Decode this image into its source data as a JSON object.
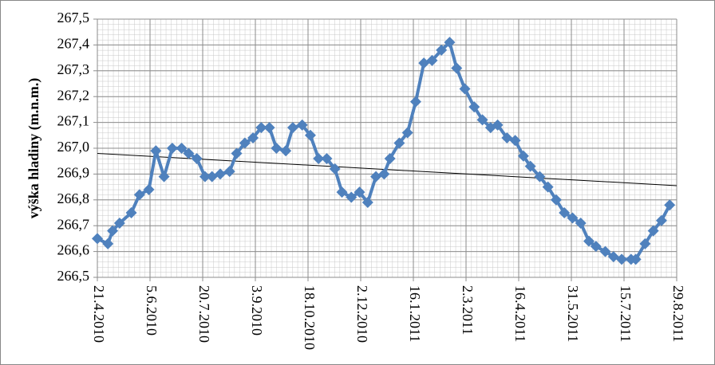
{
  "chart_data": {
    "type": "line",
    "y_label": "výška hladiny (m.n.m.)",
    "x": [
      "21.4.2010",
      "30.4.2010",
      "4.5.2010",
      "10.5.2010",
      "20.5.2010",
      "27.5.2010",
      "4.6.2010",
      "10.6.2010",
      "17.6.2010",
      "24.6.2010",
      "2.7.2010",
      "8.7.2010",
      "15.7.2010",
      "22.7.2010",
      "28.7.2010",
      "4.8.2010",
      "12.8.2010",
      "18.8.2010",
      "25.8.2010",
      "1.9.2010",
      "8.9.2010",
      "15.9.2010",
      "21.9.2010",
      "29.9.2010",
      "5.10.2010",
      "13.10.2010",
      "20.10.2010",
      "27.10.2010",
      "3.11.2010",
      "10.11.2010",
      "16.11.2010",
      "24.11.2010",
      "1.12.2010",
      "8.12.2010",
      "15.12.2010",
      "22.12.2010",
      "27.12.2010",
      "4.1.2011",
      "11.1.2011",
      "18.1.2011",
      "25.1.2011",
      "1.2.2011",
      "9.2.2011",
      "16.2.2011",
      "22.2.2011",
      "1.3.2011",
      "9.3.2011",
      "16.3.2011",
      "23.3.2011",
      "29.3.2011",
      "6.4.2011",
      "13.4.2011",
      "20.4.2011",
      "26.4.2011",
      "4.5.2011",
      "11.5.2011",
      "18.5.2011",
      "25.5.2011",
      "1.6.2011",
      "8.6.2011",
      "15.6.2011",
      "21.6.2011",
      "29.6.2011",
      "6.7.2011",
      "13.7.2011",
      "21.7.2011",
      "25.7.2011",
      "2.8.2011",
      "9.8.2011",
      "16.8.2011",
      "23.8.2011"
    ],
    "series": [
      {
        "color": "#4f81bd",
        "values": [
          266.65,
          266.63,
          266.68,
          266.71,
          266.75,
          266.82,
          266.84,
          266.99,
          266.89,
          267.0,
          267.0,
          266.98,
          266.96,
          266.89,
          266.89,
          266.9,
          266.91,
          266.98,
          267.02,
          267.04,
          267.08,
          267.08,
          267.0,
          266.99,
          267.08,
          267.09,
          267.05,
          266.96,
          266.96,
          266.92,
          266.83,
          266.81,
          266.83,
          266.79,
          266.89,
          266.9,
          266.96,
          267.02,
          267.06,
          267.18,
          267.33,
          267.34,
          267.38,
          267.41,
          267.31,
          267.23,
          267.16,
          267.11,
          267.08,
          267.09,
          267.04,
          267.03,
          266.97,
          266.93,
          266.89,
          266.85,
          266.8,
          266.75,
          266.73,
          266.71,
          266.64,
          266.62,
          266.6,
          266.58,
          266.57,
          266.57,
          266.57,
          266.63,
          266.68,
          266.72,
          266.78
        ]
      }
    ],
    "trendline": {
      "color": "#000000",
      "x": [
        "21.4.2010",
        "29.8.2011"
      ],
      "values": [
        266.98,
        266.855
      ]
    },
    "xlim": [
      "21.4.2010",
      "29.8.2011"
    ],
    "xticks": [
      "21.4.2010",
      "5.6.2010",
      "20.7.2010",
      "3.9.2010",
      "18.10.2010",
      "2.12.2010",
      "16.1.2011",
      "2.3.2011",
      "16.4.2011",
      "31.5.2011",
      "15.7.2011",
      "29.8.2011"
    ],
    "ylim": [
      266.5,
      267.5
    ],
    "yticks": [
      {
        "value": 266.5,
        "label": "266,5"
      },
      {
        "value": 266.6,
        "label": "266,6"
      },
      {
        "value": 266.7,
        "label": "266,7"
      },
      {
        "value": 266.8,
        "label": "266,8"
      },
      {
        "value": 266.9,
        "label": "266,9"
      },
      {
        "value": 267.0,
        "label": "267,0"
      },
      {
        "value": 267.1,
        "label": "267,1"
      },
      {
        "value": 267.2,
        "label": "267,2"
      },
      {
        "value": 267.3,
        "label": "267,3"
      },
      {
        "value": 267.4,
        "label": "267,4"
      },
      {
        "value": 267.5,
        "label": "267,5"
      }
    ],
    "grid": true
  }
}
